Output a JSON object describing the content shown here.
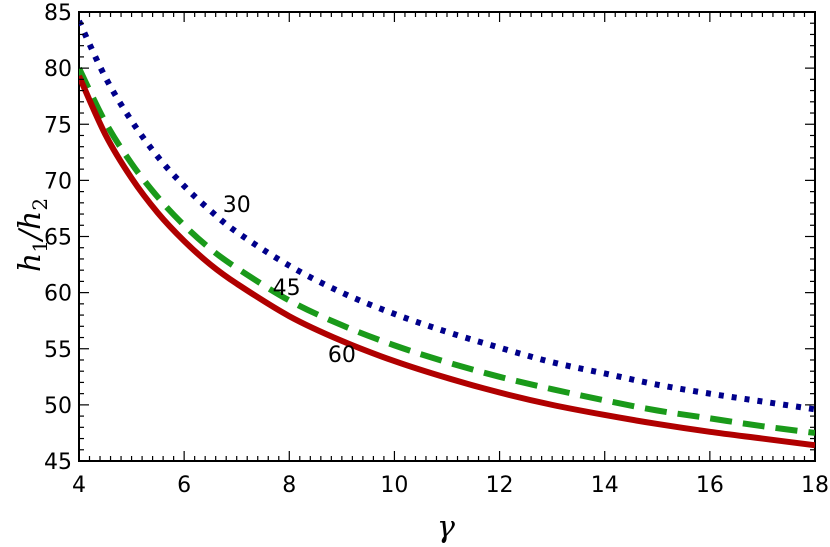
{
  "chart_data": {
    "type": "line",
    "title": "",
    "xlabel": "γ",
    "ylabel": "h_1/h_2",
    "xlim": [
      4,
      18
    ],
    "ylim": [
      45,
      85
    ],
    "xticks": [
      4,
      6,
      8,
      10,
      12,
      14,
      16,
      18
    ],
    "yticks": [
      45,
      50,
      55,
      60,
      65,
      70,
      75,
      80,
      85
    ],
    "grid": false,
    "series": [
      {
        "name": "30",
        "color": "#00008b",
        "dash": "dotted",
        "x": [
          4,
          4.5,
          5,
          5.5,
          6,
          6.5,
          7,
          8,
          9,
          10,
          11,
          12,
          13,
          14,
          15,
          16,
          17,
          18
        ],
        "y": [
          84.2,
          79.2,
          75.3,
          72.1,
          69.5,
          67.3,
          65.4,
          62.4,
          60.0,
          58.1,
          56.5,
          55.1,
          53.8,
          52.8,
          51.8,
          51.0,
          50.3,
          49.6
        ]
      },
      {
        "name": "45",
        "color": "#1a9a1a",
        "dash": "dashed",
        "x": [
          4,
          4.5,
          5,
          5.5,
          6,
          6.5,
          7,
          8,
          9,
          10,
          11,
          12,
          13,
          14,
          15,
          16,
          17,
          18
        ],
        "y": [
          80.0,
          75.2,
          71.5,
          68.5,
          66.0,
          63.9,
          62.2,
          59.3,
          57.1,
          55.3,
          53.8,
          52.5,
          51.4,
          50.4,
          49.5,
          48.8,
          48.1,
          47.5
        ]
      },
      {
        "name": "60",
        "color": "#b00000",
        "dash": "solid",
        "x": [
          4,
          4.5,
          5,
          5.5,
          6,
          6.5,
          7,
          8,
          9,
          10,
          11,
          12,
          13,
          14,
          15,
          16,
          17,
          18
        ],
        "y": [
          79.3,
          74.1,
          70.2,
          67.1,
          64.6,
          62.5,
          60.8,
          57.9,
          55.7,
          53.9,
          52.4,
          51.1,
          50.0,
          49.1,
          48.3,
          47.6,
          47.0,
          46.4
        ]
      }
    ],
    "annotations": [
      {
        "text": "30",
        "x": 7.0,
        "y": 67.2
      },
      {
        "text": "45",
        "x": 7.95,
        "y": 59.8
      },
      {
        "text": "60",
        "x": 9.0,
        "y": 53.8
      }
    ]
  }
}
